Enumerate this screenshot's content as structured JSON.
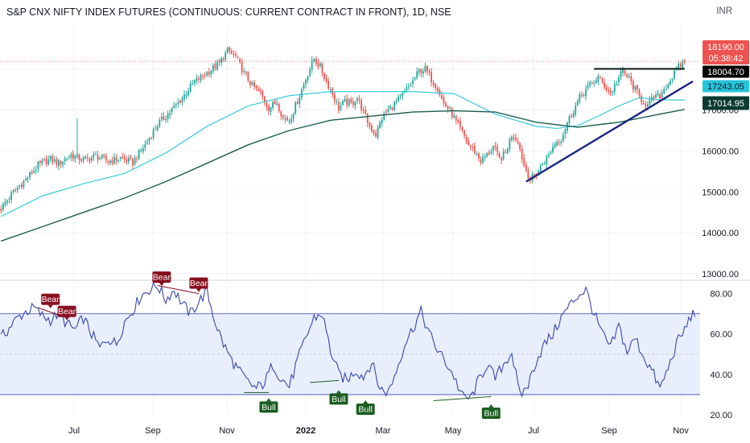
{
  "header": {
    "title": "S&P CNX NIFTY INDEX FUTURES (CONTINUOUS: CURRENT CONTRACT IN FRONT), 1D, NSE",
    "currency": "INR"
  },
  "price_tags": {
    "last_price": "18190.00",
    "countdown": "05:38:42",
    "resistance": "18004.70",
    "sma_fast": "17243.05",
    "sma_slow": "17014.95"
  },
  "colors": {
    "up": "#26a69a",
    "down": "#ef5350",
    "sma_fast": "#26c6da",
    "sma_slow": "#1b5e4f",
    "trendline": "#1a237e",
    "rsi_line": "#3949ab",
    "bull_label": "#1b5e20",
    "bear_label": "#880e1f",
    "rsi_band": "#e8eefc"
  },
  "chart_data": [
    {
      "type": "candlestick",
      "name": "price",
      "y_ticks": [
        13000,
        14000,
        15000,
        16000,
        17000,
        18000
      ],
      "y_tick_labels": [
        "13000.00",
        "14000.00",
        "15000.00",
        "16000.00",
        "17000.00",
        "18000.00"
      ],
      "ylim": [
        12900,
        18900
      ],
      "x_ticks": [
        "Jul",
        "Sep",
        "Nov",
        "2022",
        "Mar",
        "May",
        "Jul",
        "Sep",
        "Nov"
      ],
      "close_path": [
        [
          0,
          14600
        ],
        [
          6,
          15000
        ],
        [
          12,
          15300
        ],
        [
          18,
          15650
        ],
        [
          24,
          15800
        ],
        [
          28,
          15700
        ],
        [
          34,
          15900
        ],
        [
          40,
          15780
        ],
        [
          46,
          15880
        ],
        [
          52,
          15750
        ],
        [
          58,
          15820
        ],
        [
          64,
          15720
        ],
        [
          70,
          16150
        ],
        [
          76,
          16650
        ],
        [
          82,
          16950
        ],
        [
          88,
          17300
        ],
        [
          94,
          17700
        ],
        [
          100,
          17900
        ],
        [
          106,
          18150
        ],
        [
          110,
          18450
        ],
        [
          114,
          18300
        ],
        [
          118,
          17900
        ],
        [
          122,
          17600
        ],
        [
          126,
          17400
        ],
        [
          130,
          17050
        ],
        [
          134,
          17200
        ],
        [
          137,
          16800
        ],
        [
          140,
          16750
        ],
        [
          143,
          17100
        ],
        [
          146,
          17500
        ],
        [
          149,
          17900
        ],
        [
          152,
          18250
        ],
        [
          155,
          18050
        ],
        [
          158,
          17700
        ],
        [
          161,
          17400
        ],
        [
          164,
          17050
        ],
        [
          167,
          17200
        ],
        [
          170,
          17150
        ],
        [
          173,
          17300
        ],
        [
          176,
          16950
        ],
        [
          179,
          16600
        ],
        [
          182,
          16400
        ],
        [
          185,
          16800
        ],
        [
          188,
          17000
        ],
        [
          191,
          17150
        ],
        [
          194,
          17300
        ],
        [
          197,
          17500
        ],
        [
          200,
          17700
        ],
        [
          203,
          17950
        ],
        [
          206,
          18000
        ],
        [
          209,
          17750
        ],
        [
          212,
          17550
        ],
        [
          215,
          17150
        ],
        [
          218,
          17000
        ],
        [
          221,
          16700
        ],
        [
          224,
          16450
        ],
        [
          227,
          16150
        ],
        [
          230,
          16000
        ],
        [
          233,
          15750
        ],
        [
          236,
          15900
        ],
        [
          239,
          16100
        ],
        [
          242,
          15800
        ],
        [
          245,
          15950
        ],
        [
          248,
          16400
        ],
        [
          251,
          16250
        ],
        [
          254,
          15650
        ],
        [
          257,
          15300
        ],
        [
          260,
          15450
        ],
        [
          263,
          15700
        ],
        [
          266,
          15900
        ],
        [
          269,
          16200
        ],
        [
          272,
          16300
        ],
        [
          275,
          16700
        ],
        [
          278,
          17000
        ],
        [
          281,
          17300
        ],
        [
          284,
          17500
        ],
        [
          287,
          17650
        ],
        [
          290,
          17800
        ],
        [
          293,
          17600
        ],
        [
          296,
          17400
        ],
        [
          299,
          17700
        ],
        [
          302,
          17950
        ],
        [
          305,
          17750
        ],
        [
          308,
          17500
        ],
        [
          311,
          17250
        ],
        [
          314,
          17100
        ],
        [
          317,
          17300
        ],
        [
          320,
          17350
        ],
        [
          323,
          17600
        ],
        [
          326,
          17800
        ],
        [
          329,
          18050
        ],
        [
          332,
          18190
        ]
      ],
      "sma_fast_path": [
        [
          0,
          14400
        ],
        [
          20,
          14900
        ],
        [
          40,
          15200
        ],
        [
          60,
          15450
        ],
        [
          80,
          15950
        ],
        [
          100,
          16600
        ],
        [
          120,
          17100
        ],
        [
          140,
          17350
        ],
        [
          160,
          17450
        ],
        [
          180,
          17450
        ],
        [
          200,
          17450
        ],
        [
          220,
          17400
        ],
        [
          240,
          16900
        ],
        [
          260,
          16600
        ],
        [
          270,
          16550
        ],
        [
          280,
          16620
        ],
        [
          290,
          16850
        ],
        [
          300,
          17100
        ],
        [
          310,
          17300
        ],
        [
          320,
          17250
        ],
        [
          332,
          17243.05
        ]
      ],
      "sma_slow_path": [
        [
          0,
          13800
        ],
        [
          20,
          14150
        ],
        [
          40,
          14500
        ],
        [
          60,
          14850
        ],
        [
          80,
          15250
        ],
        [
          100,
          15700
        ],
        [
          120,
          16150
        ],
        [
          140,
          16500
        ],
        [
          160,
          16750
        ],
        [
          180,
          16850
        ],
        [
          200,
          16950
        ],
        [
          220,
          16980
        ],
        [
          240,
          16950
        ],
        [
          260,
          16700
        ],
        [
          280,
          16580
        ],
        [
          300,
          16700
        ],
        [
          320,
          16900
        ],
        [
          332,
          17014.95
        ]
      ],
      "trendline": [
        [
          255,
          15250
        ],
        [
          336,
          17700
        ]
      ],
      "resistance_line": [
        [
          288,
          18004.7
        ],
        [
          332,
          18004.7
        ]
      ]
    },
    {
      "type": "line",
      "name": "rsi",
      "y_ticks": [
        20,
        40,
        60,
        80
      ],
      "y_tick_labels": [
        "20.00",
        "40.00",
        "60.00",
        "80.00"
      ],
      "ylim": [
        20,
        85
      ],
      "band": [
        30,
        70
      ],
      "path": [
        [
          0,
          58
        ],
        [
          4,
          63
        ],
        [
          8,
          68
        ],
        [
          12,
          71
        ],
        [
          16,
          73
        ],
        [
          20,
          69
        ],
        [
          24,
          67
        ],
        [
          28,
          70
        ],
        [
          32,
          65
        ],
        [
          36,
          62
        ],
        [
          40,
          68
        ],
        [
          44,
          60
        ],
        [
          48,
          53
        ],
        [
          52,
          58
        ],
        [
          56,
          55
        ],
        [
          60,
          66
        ],
        [
          64,
          72
        ],
        [
          68,
          79
        ],
        [
          72,
          82
        ],
        [
          76,
          84
        ],
        [
          80,
          77
        ],
        [
          84,
          82
        ],
        [
          88,
          75
        ],
        [
          92,
          70
        ],
        [
          96,
          76
        ],
        [
          100,
          81
        ],
        [
          104,
          66
        ],
        [
          108,
          55
        ],
        [
          112,
          47
        ],
        [
          116,
          41
        ],
        [
          120,
          36
        ],
        [
          124,
          33
        ],
        [
          128,
          36
        ],
        [
          132,
          45
        ],
        [
          136,
          38
        ],
        [
          140,
          34
        ],
        [
          144,
          47
        ],
        [
          148,
          58
        ],
        [
          152,
          68
        ],
        [
          156,
          70
        ],
        [
          160,
          52
        ],
        [
          164,
          40
        ],
        [
          168,
          37
        ],
        [
          172,
          42
        ],
        [
          176,
          39
        ],
        [
          180,
          46
        ],
        [
          184,
          33
        ],
        [
          188,
          31
        ],
        [
          192,
          42
        ],
        [
          196,
          55
        ],
        [
          200,
          63
        ],
        [
          204,
          71
        ],
        [
          208,
          60
        ],
        [
          212,
          52
        ],
        [
          216,
          46
        ],
        [
          220,
          39
        ],
        [
          224,
          29
        ],
        [
          228,
          28
        ],
        [
          232,
          37
        ],
        [
          236,
          45
        ],
        [
          240,
          38
        ],
        [
          244,
          45
        ],
        [
          248,
          51
        ],
        [
          252,
          29
        ],
        [
          256,
          35
        ],
        [
          260,
          47
        ],
        [
          264,
          55
        ],
        [
          268,
          60
        ],
        [
          272,
          68
        ],
        [
          276,
          74
        ],
        [
          280,
          79
        ],
        [
          284,
          82
        ],
        [
          288,
          70
        ],
        [
          292,
          60
        ],
        [
          296,
          53
        ],
        [
          300,
          64
        ],
        [
          304,
          51
        ],
        [
          308,
          58
        ],
        [
          312,
          49
        ],
        [
          316,
          42
        ],
        [
          320,
          33
        ],
        [
          324,
          43
        ],
        [
          328,
          55
        ],
        [
          332,
          62
        ],
        [
          335,
          69
        ],
        [
          337,
          70
        ]
      ],
      "signals": [
        {
          "label": "Bear",
          "kind": "bear",
          "x": 24,
          "y": 72
        },
        {
          "label": "Bear",
          "kind": "bear",
          "x": 32,
          "y": 66
        },
        {
          "label": "Bear",
          "kind": "bear",
          "x": 78,
          "y": 83
        },
        {
          "label": "Bear",
          "kind": "bear",
          "x": 96,
          "y": 80
        },
        {
          "label": "Bull",
          "kind": "bull",
          "x": 130,
          "y": 29
        },
        {
          "label": "Bull",
          "kind": "bull",
          "x": 164,
          "y": 33
        },
        {
          "label": "Bull",
          "kind": "bull",
          "x": 177,
          "y": 28
        },
        {
          "label": "Bull",
          "kind": "bull",
          "x": 238,
          "y": 26
        }
      ]
    }
  ]
}
